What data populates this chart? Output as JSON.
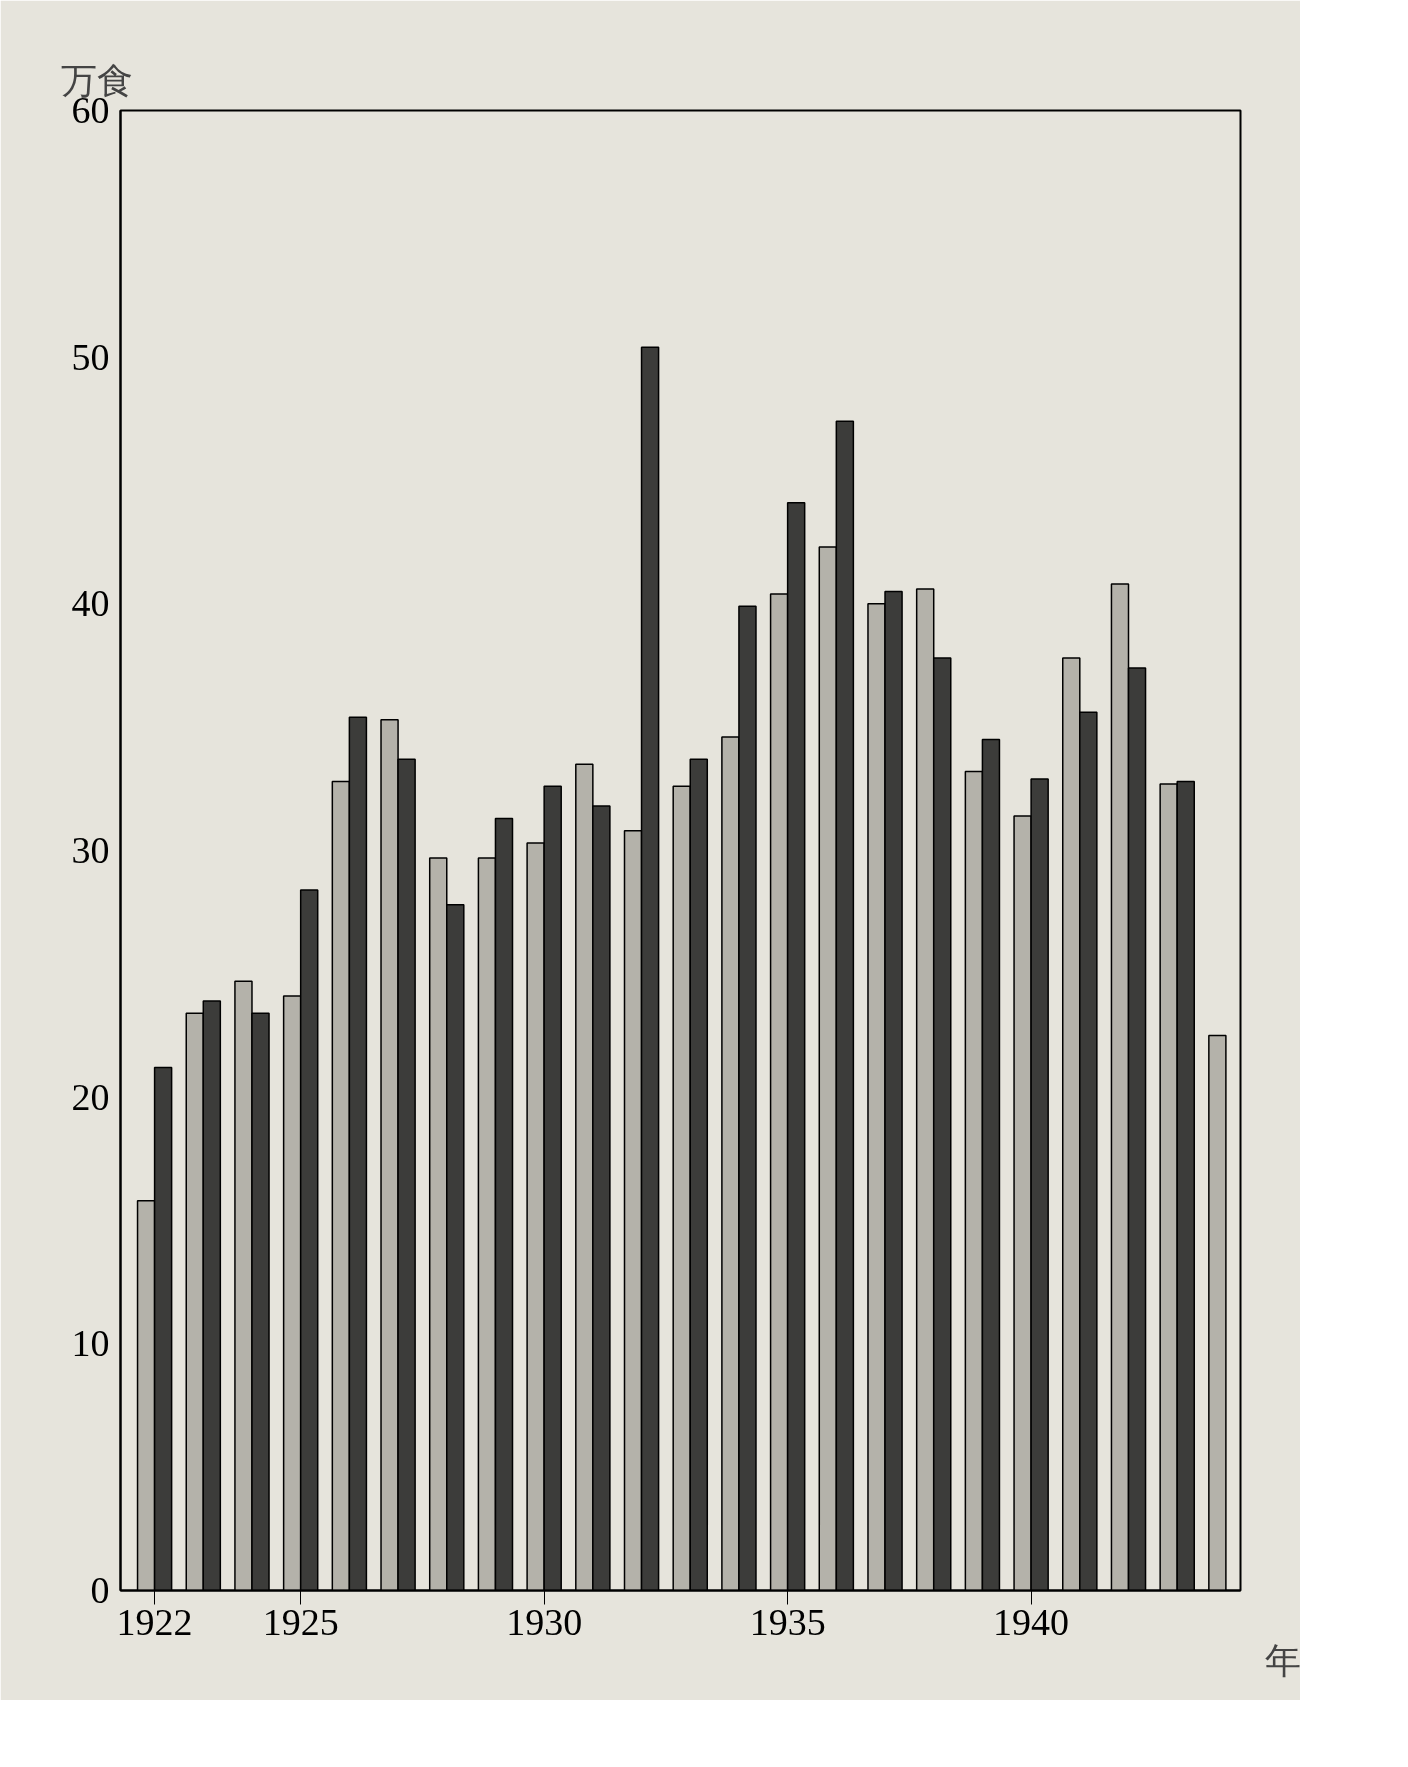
{
  "chart_data": {
    "type": "bar",
    "ylabel": "万食",
    "xlabel": "年",
    "x": [
      1922,
      1923,
      1924,
      1925,
      1926,
      1927,
      1928,
      1929,
      1930,
      1931,
      1932,
      1933,
      1934,
      1935,
      1936,
      1937,
      1938,
      1939,
      1940,
      1941,
      1942,
      1943,
      1944
    ],
    "series": [
      {
        "color": "#b4b2aa",
        "values": [
          15.8,
          23.4,
          24.7,
          24.1,
          32.8,
          35.3,
          29.7,
          29.7,
          30.3,
          33.5,
          30.8,
          32.6,
          34.6,
          40.4,
          42.3,
          40.0,
          40.6,
          33.2,
          31.4,
          37.8,
          40.8,
          32.7,
          22.5
        ]
      },
      {
        "color": "#3c3c3a",
        "values": [
          21.2,
          23.9,
          23.4,
          28.4,
          35.4,
          33.7,
          27.8,
          31.3,
          32.6,
          31.8,
          50.4,
          33.7,
          39.9,
          44.1,
          47.4,
          40.5,
          37.8,
          34.5,
          32.9,
          35.6,
          37.4,
          32.8,
          null
        ]
      }
    ],
    "xlim": [
      1921.3,
      1944.3
    ],
    "xticks": [
      1922,
      1925,
      1930,
      1935,
      1940
    ],
    "ylim": [
      0,
      60
    ],
    "yticks": [
      0,
      10,
      20,
      30,
      40,
      50,
      60
    ],
    "grid": false
  }
}
